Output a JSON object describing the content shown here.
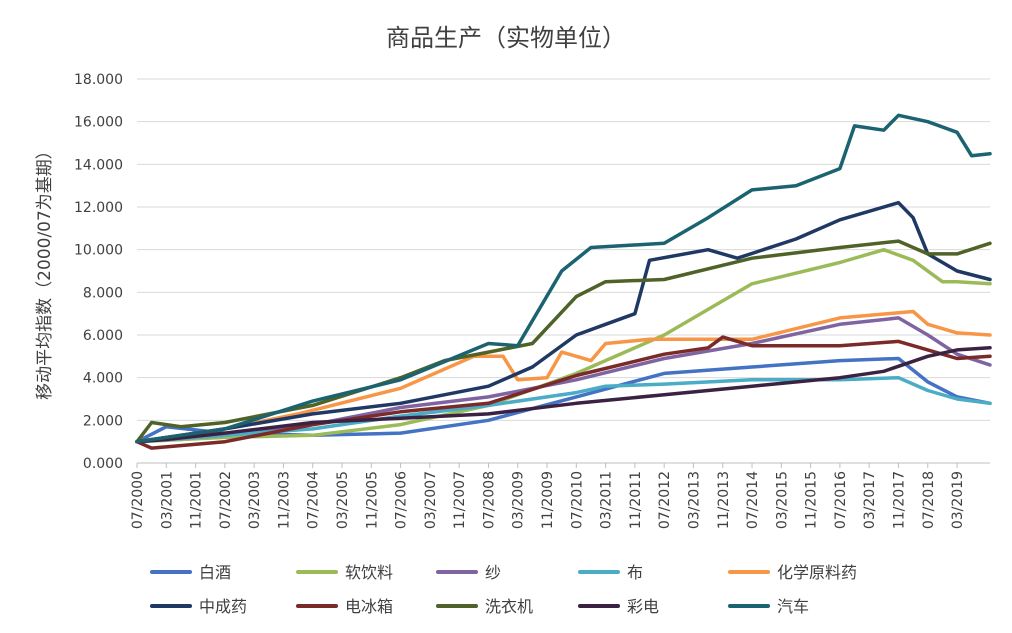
{
  "chart_data": {
    "type": "line",
    "title": "商品生产（实物单位）",
    "ylabel": "移动平均指数（2000/07为基期）",
    "xlabel": "",
    "ylim": [
      0,
      18
    ],
    "yticks": [
      "0.000",
      "2.000",
      "4.000",
      "6.000",
      "8.000",
      "10.000",
      "12.000",
      "14.000",
      "16.000",
      "18.000"
    ],
    "xticks": [
      "07/2000",
      "03/2001",
      "11/2001",
      "07/2002",
      "03/2003",
      "11/2003",
      "07/2004",
      "03/2005",
      "11/2005",
      "07/2006",
      "03/2007",
      "11/2007",
      "07/2008",
      "03/2009",
      "11/2009",
      "07/2010",
      "03/2011",
      "11/2011",
      "07/2012",
      "03/2013",
      "11/2013",
      "07/2014",
      "03/2015",
      "11/2015",
      "07/2016",
      "03/2017",
      "11/2017",
      "07/2018",
      "03/2019"
    ],
    "grid": "horizontal",
    "legend": "bottom",
    "x_start": "07/2000",
    "x_end": "12/2019",
    "series": [
      {
        "name": "白酒",
        "color": "#4472C4",
        "x": [
          "07/2000",
          "03/2001",
          "07/2002",
          "07/2004",
          "07/2006",
          "07/2008",
          "07/2010",
          "07/2012",
          "07/2014",
          "07/2016",
          "11/2017",
          "07/2018",
          "03/2019",
          "12/2019"
        ],
        "values": [
          1.0,
          1.7,
          1.4,
          1.3,
          1.4,
          2.0,
          3.1,
          4.2,
          4.5,
          4.8,
          4.9,
          3.8,
          3.1,
          2.8
        ]
      },
      {
        "name": "软饮料",
        "color": "#9BBB59",
        "x": [
          "07/2000",
          "07/2002",
          "07/2004",
          "07/2006",
          "07/2008",
          "07/2010",
          "07/2012",
          "07/2014",
          "07/2016",
          "07/2017",
          "03/2018",
          "11/2018",
          "03/2019",
          "12/2019"
        ],
        "values": [
          1.0,
          1.2,
          1.3,
          1.8,
          2.7,
          4.2,
          6.0,
          8.4,
          9.4,
          10.0,
          9.5,
          8.5,
          8.5,
          8.4
        ]
      },
      {
        "name": "纱",
        "color": "#8064A2",
        "x": [
          "07/2000",
          "07/2002",
          "07/2004",
          "07/2006",
          "07/2008",
          "07/2010",
          "07/2012",
          "07/2014",
          "07/2016",
          "11/2017",
          "07/2018",
          "03/2019",
          "12/2019"
        ],
        "values": [
          1.0,
          1.3,
          1.8,
          2.6,
          3.1,
          3.9,
          4.9,
          5.6,
          6.5,
          6.8,
          6.0,
          5.1,
          4.6
        ]
      },
      {
        "name": "布",
        "color": "#4BACC6",
        "x": [
          "07/2000",
          "07/2002",
          "07/2004",
          "07/2006",
          "07/2008",
          "07/2010",
          "03/2011",
          "07/2012",
          "07/2014",
          "07/2016",
          "11/2017",
          "07/2018",
          "03/2019",
          "12/2019"
        ],
        "values": [
          1.0,
          1.3,
          1.6,
          2.2,
          2.7,
          3.3,
          3.6,
          3.7,
          3.9,
          3.9,
          4.0,
          3.4,
          3.0,
          2.8
        ]
      },
      {
        "name": "化学原料药",
        "color": "#F79646",
        "x": [
          "07/2000",
          "07/2002",
          "03/2004",
          "07/2006",
          "03/2008",
          "11/2008",
          "03/2009",
          "11/2009",
          "03/2010",
          "11/2010",
          "03/2011",
          "03/2012",
          "07/2014",
          "07/2016",
          "03/2018",
          "07/2018",
          "03/2019",
          "12/2019"
        ],
        "values": [
          1.0,
          1.6,
          2.3,
          3.5,
          5.0,
          5.0,
          3.9,
          4.0,
          5.2,
          4.8,
          5.6,
          5.8,
          5.8,
          6.8,
          7.1,
          6.5,
          6.1,
          6.0
        ]
      },
      {
        "name": "中成药",
        "color": "#1F3864",
        "x": [
          "07/2000",
          "07/2002",
          "07/2004",
          "07/2006",
          "07/2008",
          "07/2009",
          "07/2010",
          "03/2011",
          "11/2011",
          "03/2012",
          "07/2013",
          "03/2014",
          "07/2015",
          "07/2016",
          "11/2017",
          "03/2018",
          "07/2018",
          "03/2019",
          "12/2019"
        ],
        "values": [
          1.0,
          1.6,
          2.3,
          2.8,
          3.6,
          4.5,
          6.0,
          6.5,
          7.0,
          9.5,
          10.0,
          9.6,
          10.5,
          11.4,
          12.2,
          11.5,
          9.8,
          9.0,
          8.6
        ]
      },
      {
        "name": "电冰箱",
        "color": "#7B2A2A",
        "x": [
          "07/2000",
          "11/2000",
          "07/2002",
          "07/2004",
          "07/2006",
          "07/2008",
          "07/2010",
          "07/2012",
          "07/2013",
          "11/2013",
          "07/2014",
          "07/2016",
          "11/2017",
          "07/2018",
          "03/2019",
          "12/2019"
        ],
        "values": [
          1.0,
          0.7,
          1.0,
          1.8,
          2.4,
          2.8,
          4.1,
          5.1,
          5.4,
          5.9,
          5.5,
          5.5,
          5.7,
          5.3,
          4.9,
          5.0
        ]
      },
      {
        "name": "洗衣机",
        "color": "#4F6228",
        "x": [
          "07/2000",
          "11/2000",
          "07/2001",
          "07/2002",
          "07/2004",
          "07/2006",
          "07/2007",
          "07/2008",
          "07/2009",
          "07/2010",
          "03/2011",
          "07/2012",
          "07/2014",
          "07/2016",
          "11/2017",
          "07/2018",
          "03/2019",
          "12/2019"
        ],
        "values": [
          1.0,
          1.9,
          1.7,
          1.9,
          2.7,
          4.0,
          4.8,
          5.2,
          5.6,
          7.8,
          8.5,
          8.6,
          9.6,
          10.1,
          10.4,
          9.8,
          9.8,
          10.3
        ]
      },
      {
        "name": "彩电",
        "color": "#3B2243",
        "x": [
          "07/2000",
          "03/2001",
          "07/2002",
          "07/2004",
          "07/2006",
          "07/2008",
          "07/2010",
          "07/2012",
          "07/2014",
          "07/2016",
          "07/2017",
          "07/2018",
          "03/2019",
          "12/2019"
        ],
        "values": [
          1.0,
          1.1,
          1.4,
          1.9,
          2.1,
          2.3,
          2.8,
          3.2,
          3.6,
          4.0,
          4.3,
          5.0,
          5.3,
          5.4
        ]
      },
      {
        "name": "汽车",
        "color": "#1B6370",
        "x": [
          "07/2000",
          "07/2002",
          "07/2004",
          "07/2006",
          "07/2008",
          "03/2009",
          "03/2010",
          "11/2010",
          "07/2012",
          "07/2013",
          "07/2014",
          "07/2015",
          "07/2016",
          "11/2016",
          "07/2017",
          "11/2017",
          "07/2018",
          "03/2019",
          "07/2019",
          "12/2019"
        ],
        "values": [
          1.0,
          1.6,
          2.9,
          3.9,
          5.6,
          5.5,
          9.0,
          10.1,
          10.3,
          11.5,
          12.8,
          13.0,
          13.8,
          15.8,
          15.6,
          16.3,
          16.0,
          15.5,
          14.4,
          14.5
        ]
      }
    ]
  }
}
